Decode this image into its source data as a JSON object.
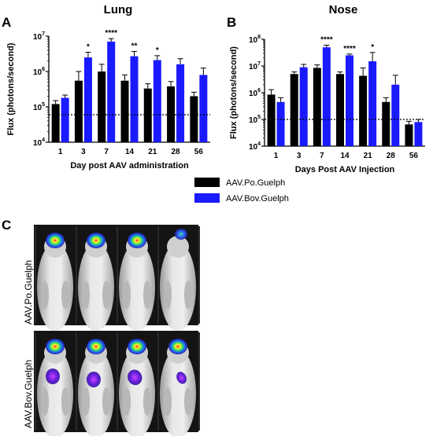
{
  "panels": {
    "a": "A",
    "b": "B",
    "c": "C"
  },
  "colors": {
    "po": "#000000",
    "bov": "#1a1aff"
  },
  "legend": {
    "po_label": "AAV.Po.Guelph",
    "bov_label": "AAV.Bov.Guelph"
  },
  "photos": {
    "top_label": "AAV.Po.Guelph",
    "bottom_label": "AAV.Bov.Guelph"
  },
  "chart_data": [
    {
      "type": "bar",
      "title": "Lung",
      "xlabel": "Day post AAV administration",
      "ylabel": "Flux (photons/second)",
      "y_scale": "log",
      "ylim": [
        10000,
        10000000
      ],
      "y_ticks": [
        {
          "value": 10000,
          "base": "10",
          "exp": "4"
        },
        {
          "value": 100000,
          "base": "10",
          "exp": "5"
        },
        {
          "value": 1000000,
          "base": "10",
          "exp": "6"
        },
        {
          "value": 10000000,
          "base": "10",
          "exp": "7"
        }
      ],
      "categories": [
        "1",
        "3",
        "7",
        "14",
        "21",
        "28",
        "56"
      ],
      "series": [
        {
          "name": "AAV.Po.Guelph",
          "values": [
            120000,
            550000,
            1000000,
            550000,
            330000,
            380000,
            200000
          ],
          "err": [
            150000,
            1000000,
            1600000,
            800000,
            450000,
            520000,
            260000
          ]
        },
        {
          "name": "AAV.Bov.Guelph",
          "values": [
            180000,
            2500000,
            7000000,
            2700000,
            2100000,
            1600000,
            800000
          ],
          "err": [
            215000,
            3500000,
            8500000,
            3700000,
            2800000,
            2300000,
            1250000
          ]
        }
      ],
      "significance": [
        "",
        "*",
        "****",
        "**",
        "*",
        "",
        ""
      ],
      "reference_line": 60000
    },
    {
      "type": "bar",
      "title": "Nose",
      "xlabel": "Days Post AAV Injection",
      "ylabel": "Flux (photons/second)",
      "y_scale": "log",
      "ylim": [
        10000,
        100000000
      ],
      "y_ticks": [
        {
          "value": 10000,
          "base": "10",
          "exp": "4"
        },
        {
          "value": 100000,
          "base": "10",
          "exp": "5"
        },
        {
          "value": 1000000,
          "base": "10",
          "exp": "6"
        },
        {
          "value": 10000000,
          "base": "10",
          "exp": "7"
        },
        {
          "value": 100000000,
          "base": "10",
          "exp": "8"
        }
      ],
      "categories": [
        "1",
        "3",
        "7",
        "14",
        "21",
        "28",
        "56"
      ],
      "series": [
        {
          "name": "AAV.Po.Guelph",
          "values": [
            850000,
            5000000,
            8500000,
            5000000,
            4300000,
            450000,
            65000
          ],
          "err": [
            1300000,
            6000000,
            11000000,
            6000000,
            8500000,
            650000,
            85000
          ]
        },
        {
          "name": "AAV.Bov.Guelph",
          "values": [
            450000,
            9000000,
            50000000,
            25000000,
            15000000,
            2000000,
            80000
          ],
          "err": [
            650000,
            11500000,
            60000000,
            28000000,
            32000000,
            4500000,
            100000
          ]
        }
      ],
      "significance": [
        "",
        "",
        "****",
        "****",
        "*",
        "",
        ""
      ],
      "reference_line": 100000
    }
  ]
}
